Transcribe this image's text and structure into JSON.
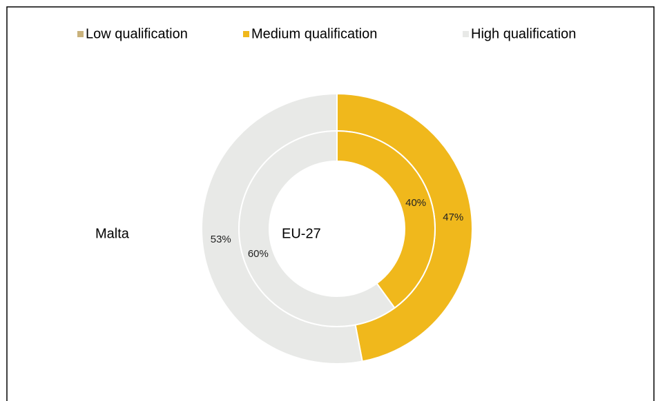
{
  "chart_data": {
    "type": "donut",
    "categories": [
      "Low qualification",
      "Medium qualification",
      "High qualification"
    ],
    "colors": [
      "#c9b27c",
      "#f0b81c",
      "#e8e9e7"
    ],
    "series": [
      {
        "name": "Malta",
        "values": [
          0,
          47,
          53
        ],
        "value_labels": [
          "0%",
          "47%",
          "53%"
        ]
      },
      {
        "name": "EU-27",
        "values": [
          0,
          40,
          60
        ],
        "value_labels": [
          "0%",
          "40%",
          "60%"
        ]
      }
    ]
  }
}
